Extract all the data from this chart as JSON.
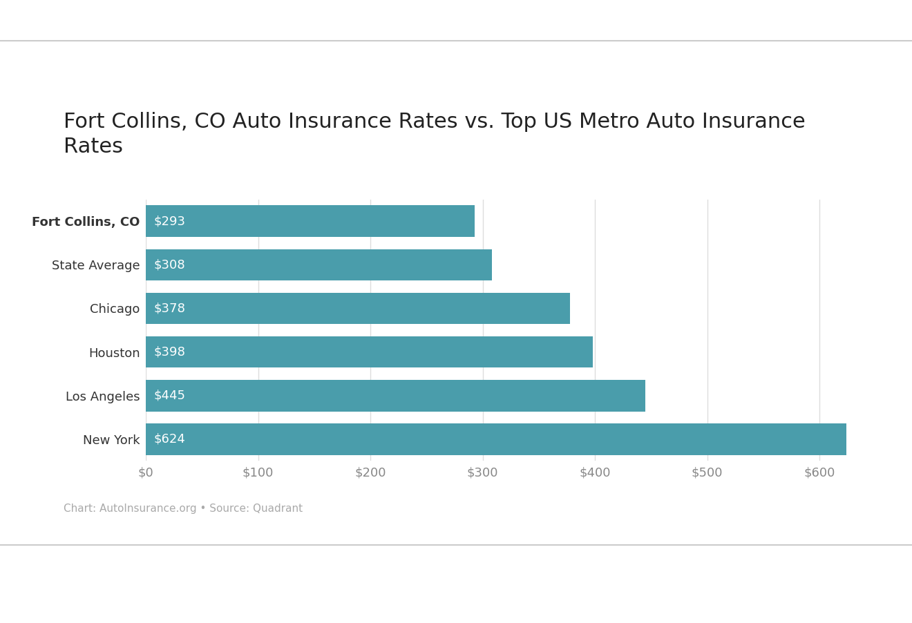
{
  "title": "Fort Collins, CO Auto Insurance Rates vs. Top US Metro Auto Insurance\nRates",
  "categories": [
    "Fort Collins, CO",
    "State Average",
    "Chicago",
    "Houston",
    "Los Angeles",
    "New York"
  ],
  "values": [
    293,
    308,
    378,
    398,
    445,
    624
  ],
  "bar_color": "#4a9dab",
  "label_color": "#ffffff",
  "label_fontsize": 13,
  "title_fontsize": 22,
  "tick_fontsize": 13,
  "xlim": [
    0,
    650
  ],
  "xticks": [
    0,
    100,
    200,
    300,
    400,
    500,
    600
  ],
  "xtick_labels": [
    "$0",
    "$100",
    "$200",
    "$300",
    "$400",
    "$500",
    "$600"
  ],
  "background_color": "#ffffff",
  "grid_color": "#dddddd",
  "footer_text": "Chart: AutoInsurance.org • Source: Quadrant",
  "footer_fontsize": 11,
  "footer_color": "#aaaaaa",
  "line_color": "#cccccc"
}
